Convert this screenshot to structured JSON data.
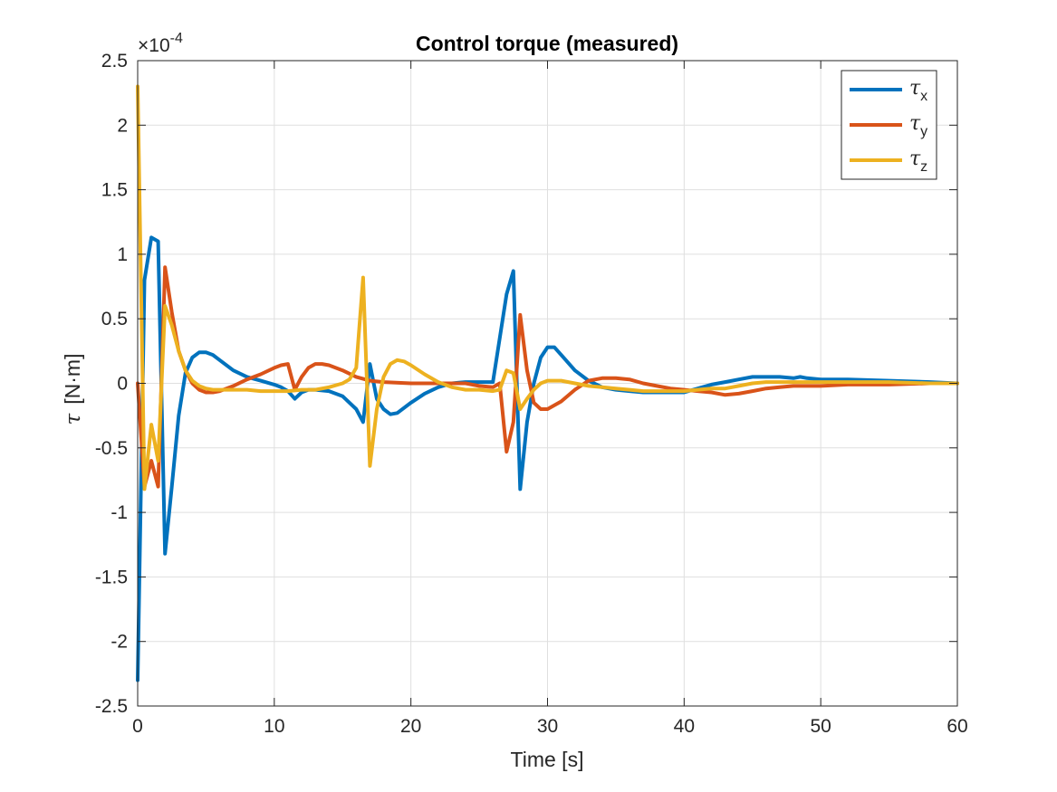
{
  "chart_data": {
    "type": "line",
    "title": "Control torque (measured)",
    "xlabel": "Time [s]",
    "ylabel_symbol": "τ",
    "ylabel_unit": "[N·m]",
    "y_exponent_label": "×10",
    "y_exponent_power": "-4",
    "xlim": [
      0,
      60
    ],
    "ylim": [
      -2.5,
      2.5
    ],
    "x_ticks": [
      0,
      10,
      20,
      30,
      40,
      50,
      60
    ],
    "x_tick_labels": [
      "0",
      "10",
      "20",
      "30",
      "40",
      "50",
      "60"
    ],
    "y_ticks": [
      -2.5,
      -2,
      -1.5,
      -1,
      -0.5,
      0,
      0.5,
      1,
      1.5,
      2,
      2.5
    ],
    "y_tick_labels": [
      "-2.5",
      "-2",
      "-1.5",
      "-1",
      "-0.5",
      "0",
      "0.5",
      "1",
      "1.5",
      "2",
      "2.5"
    ],
    "grid": true,
    "legend_position": "top-right",
    "series": [
      {
        "name": "τ",
        "subscript": "x",
        "color": "#0072BD",
        "x": [
          0,
          0.5,
          1,
          1.5,
          2,
          2.5,
          3,
          3.5,
          4,
          4.5,
          5,
          5.5,
          6,
          7,
          8,
          9,
          10,
          10.5,
          11,
          11.5,
          12,
          12.5,
          13,
          14,
          15,
          16,
          16.5,
          17,
          17.5,
          18,
          18.5,
          19,
          20,
          21,
          22,
          23,
          24,
          25,
          26,
          27,
          27.5,
          28,
          28.5,
          29,
          29.5,
          30,
          30.5,
          31,
          32,
          33,
          34,
          35,
          36,
          37,
          38,
          39,
          40,
          41,
          42,
          43,
          44,
          45,
          46,
          47,
          48,
          48.5,
          49,
          50,
          52,
          55,
          58,
          60
        ],
        "values": [
          -2.3,
          0.8,
          1.13,
          1.1,
          -1.32,
          -0.8,
          -0.25,
          0.08,
          0.2,
          0.24,
          0.24,
          0.22,
          0.18,
          0.1,
          0.05,
          0.02,
          -0.01,
          -0.03,
          -0.06,
          -0.12,
          -0.07,
          -0.05,
          -0.05,
          -0.06,
          -0.1,
          -0.2,
          -0.3,
          0.15,
          -0.12,
          -0.2,
          -0.24,
          -0.23,
          -0.15,
          -0.08,
          -0.03,
          0.0,
          0.01,
          0.01,
          0.01,
          0.69,
          0.87,
          -0.82,
          -0.3,
          0.0,
          0.2,
          0.28,
          0.28,
          0.22,
          0.1,
          0.02,
          -0.03,
          -0.05,
          -0.06,
          -0.07,
          -0.07,
          -0.07,
          -0.07,
          -0.04,
          -0.01,
          0.01,
          0.03,
          0.05,
          0.05,
          0.05,
          0.04,
          0.05,
          0.04,
          0.03,
          0.03,
          0.02,
          0.01,
          0.0
        ]
      },
      {
        "name": "τ",
        "subscript": "y",
        "color": "#D95319",
        "x": [
          0,
          0.5,
          1,
          1.5,
          2,
          2.5,
          3,
          3.5,
          4,
          4.5,
          5,
          5.5,
          6,
          7,
          8,
          9,
          10,
          10.5,
          11,
          11.5,
          12,
          12.5,
          13,
          13.5,
          14,
          15,
          16,
          17,
          18,
          20,
          22,
          24,
          25,
          26,
          26.5,
          27,
          27.5,
          28,
          28.5,
          29,
          29.5,
          30,
          31,
          32,
          33,
          34,
          35,
          36,
          37,
          38,
          39,
          40,
          41,
          42,
          43,
          44,
          45,
          46,
          47,
          48,
          50,
          52,
          55,
          58,
          60
        ],
        "values": [
          0.0,
          -0.8,
          -0.6,
          -0.8,
          0.9,
          0.55,
          0.25,
          0.1,
          0.0,
          -0.05,
          -0.07,
          -0.07,
          -0.06,
          -0.02,
          0.03,
          0.07,
          0.12,
          0.14,
          0.15,
          -0.05,
          0.05,
          0.12,
          0.15,
          0.15,
          0.14,
          0.1,
          0.05,
          0.02,
          0.01,
          0.0,
          0.0,
          0.0,
          -0.02,
          -0.03,
          0.0,
          -0.53,
          -0.3,
          0.53,
          0.1,
          -0.15,
          -0.2,
          -0.2,
          -0.14,
          -0.05,
          0.02,
          0.04,
          0.04,
          0.03,
          0.0,
          -0.02,
          -0.04,
          -0.05,
          -0.06,
          -0.07,
          -0.09,
          -0.08,
          -0.06,
          -0.04,
          -0.03,
          -0.02,
          -0.02,
          -0.01,
          -0.01,
          0.0,
          0.0
        ]
      },
      {
        "name": "τ",
        "subscript": "z",
        "color": "#EDB120",
        "x": [
          0,
          0.5,
          1,
          1.5,
          2,
          2.5,
          3,
          3.5,
          4,
          4.5,
          5,
          5.5,
          6,
          7,
          8,
          9,
          10,
          11,
          12,
          13,
          14,
          15,
          15.5,
          16,
          16.5,
          17,
          17.5,
          18,
          18.5,
          19,
          19.5,
          20,
          21,
          22,
          23,
          24,
          25,
          26,
          26.5,
          27,
          27.5,
          28,
          28.5,
          29,
          29.5,
          30,
          31,
          32,
          33,
          34,
          35,
          36,
          37,
          38,
          39,
          40,
          41,
          42,
          43,
          44,
          45,
          46,
          47,
          48,
          50,
          52,
          55,
          58,
          60
        ],
        "values": [
          2.3,
          -0.82,
          -0.32,
          -0.6,
          0.6,
          0.45,
          0.25,
          0.1,
          0.02,
          -0.02,
          -0.04,
          -0.05,
          -0.05,
          -0.05,
          -0.05,
          -0.06,
          -0.06,
          -0.06,
          -0.05,
          -0.05,
          -0.03,
          0.0,
          0.03,
          0.12,
          0.82,
          -0.64,
          -0.2,
          0.05,
          0.15,
          0.18,
          0.17,
          0.14,
          0.07,
          0.01,
          -0.03,
          -0.05,
          -0.05,
          -0.06,
          -0.05,
          0.1,
          0.08,
          -0.2,
          -0.12,
          -0.05,
          0.0,
          0.02,
          0.02,
          0.0,
          -0.02,
          -0.03,
          -0.04,
          -0.05,
          -0.06,
          -0.06,
          -0.06,
          -0.06,
          -0.05,
          -0.04,
          -0.04,
          -0.02,
          0.0,
          0.01,
          0.01,
          0.01,
          0.01,
          0.01,
          0.01,
          0.0,
          0.0
        ]
      }
    ]
  }
}
